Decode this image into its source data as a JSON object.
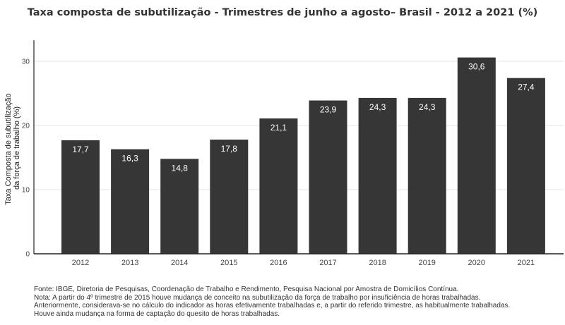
{
  "chart_data": {
    "type": "bar",
    "title": "Taxa composta de subutilização - Trimestres de junho a agosto– Brasil - 2012 a 2021 (%)",
    "ylabel_lines": [
      "Taxa Composta de subutilização",
      "da força de trabalho (%)"
    ],
    "xlabel": "",
    "categories": [
      "2012",
      "2013",
      "2014",
      "2015",
      "2016",
      "2017",
      "2018",
      "2019",
      "2020",
      "2021"
    ],
    "values": [
      17.7,
      16.3,
      14.8,
      17.8,
      21.1,
      23.9,
      24.3,
      24.3,
      30.6,
      27.4
    ],
    "value_labels": [
      "17,7",
      "16,3",
      "14,8",
      "17,8",
      "21,1",
      "23,9",
      "24,3",
      "24,3",
      "30,6",
      "27,4"
    ],
    "ylim": [
      0,
      33.3
    ],
    "yticks": [
      0,
      10,
      20,
      30
    ],
    "grid": true,
    "bar_color": "#363636"
  },
  "notes": [
    "Fonte: IBGE, Diretoria de Pesquisas, Coordenação de Trabalho e Rendimento, Pesquisa Nacional por Amostra de Domicílios Contínua.",
    "Nota: A partir do 4º trimestre de 2015 houve mudança de conceito na subutilização da força de trabalho por insuficiência de horas trabalhadas.",
    "Anteriormente, considerava-se no cálculo do indicador as horas efetivamente trabalhadas e, a partir do referido trimestre, as habitualmente trabalhadas.",
    "Houve ainda mudança na forma de captação do quesito de horas trabalhadas."
  ]
}
